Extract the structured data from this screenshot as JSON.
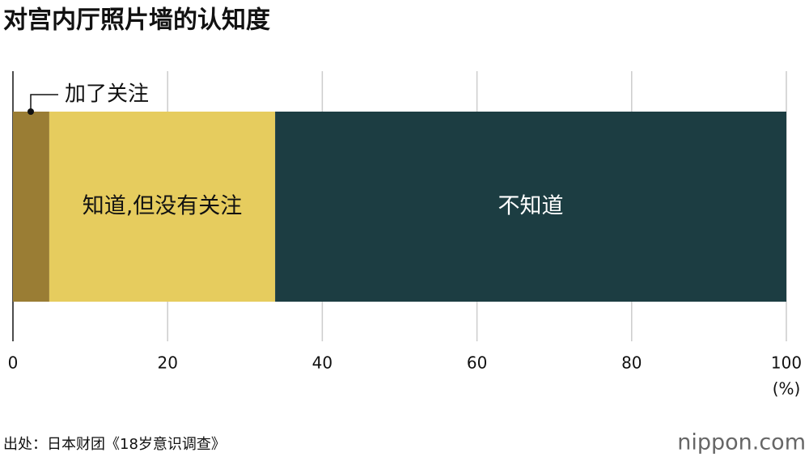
{
  "chart_data": {
    "type": "stacked-bar",
    "orientation": "horizontal",
    "title": "对宫内厅照片墙的认知度",
    "series": [
      {
        "name": "加了关注",
        "color": "#9a7d34",
        "values": [
          4.7
        ]
      },
      {
        "name": "知道,但没有关注",
        "color": "#e6cc5e",
        "values": [
          29.2
        ]
      },
      {
        "name": "不知道",
        "color": "#1c3d42",
        "values": [
          66.1
        ]
      }
    ],
    "xlim": [
      0,
      100
    ],
    "xticks": [
      0,
      20,
      40,
      60,
      80,
      100
    ],
    "x_unit": "(%)",
    "grid": true,
    "source": "出处：日本财团《18岁意识调查》",
    "logo": "nippon.com"
  }
}
